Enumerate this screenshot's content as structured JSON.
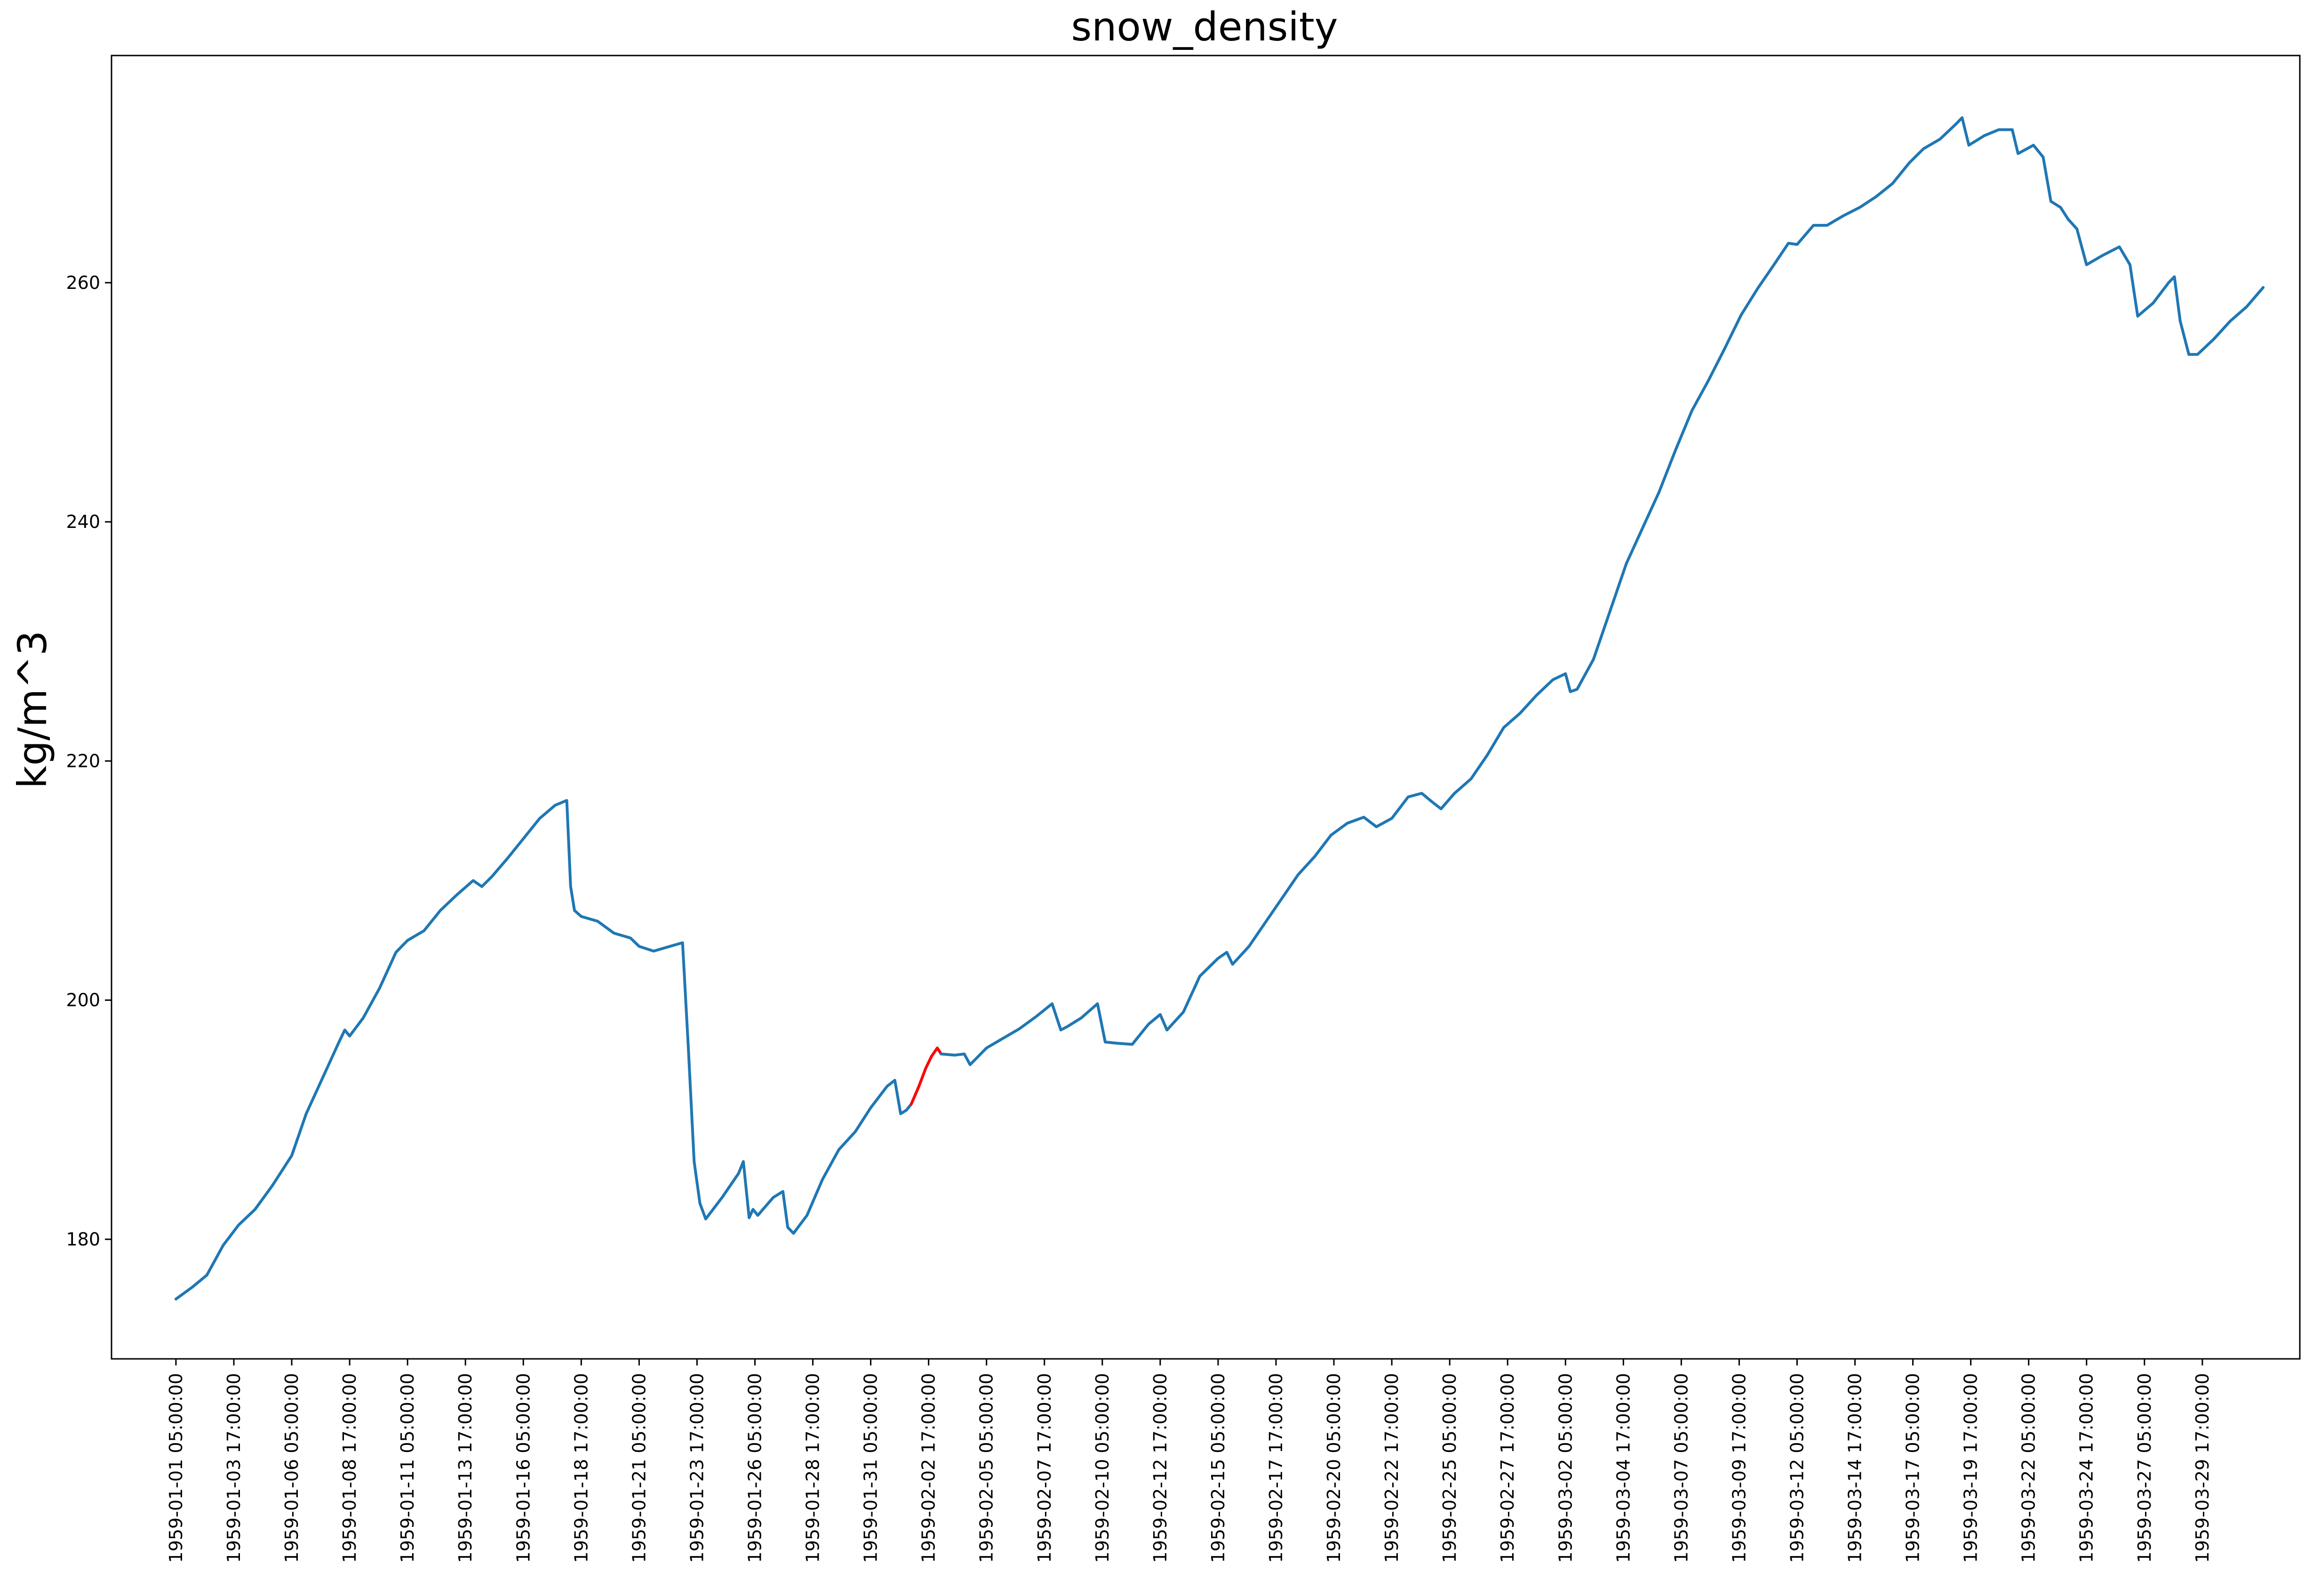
{
  "chart_data": {
    "type": "line",
    "title": "snow_density",
    "xlabel": "",
    "ylabel": "kg/m^3",
    "ylim": [
      170,
      279
    ],
    "xlim": [
      "1958-12-29 10:14:00",
      "1959-04-02 22:00:00"
    ],
    "grid": false,
    "y_ticks": [
      180,
      200,
      220,
      240,
      260
    ],
    "x_ticks": [
      "1959-01-01 05:00:00",
      "1959-01-03 17:00:00",
      "1959-01-06 05:00:00",
      "1959-01-08 17:00:00",
      "1959-01-11 05:00:00",
      "1959-01-13 17:00:00",
      "1959-01-16 05:00:00",
      "1959-01-18 17:00:00",
      "1959-01-21 05:00:00",
      "1959-01-23 17:00:00",
      "1959-01-26 05:00:00",
      "1959-01-28 17:00:00",
      "1959-01-31 05:00:00",
      "1959-02-02 17:00:00",
      "1959-02-05 05:00:00",
      "1959-02-07 17:00:00",
      "1959-02-10 05:00:00",
      "1959-02-12 17:00:00",
      "1959-02-15 05:00:00",
      "1959-02-17 17:00:00",
      "1959-02-20 05:00:00",
      "1959-02-22 17:00:00",
      "1959-02-25 05:00:00",
      "1959-02-27 17:00:00",
      "1959-03-02 05:00:00",
      "1959-03-04 17:00:00",
      "1959-03-07 05:00:00",
      "1959-03-09 17:00:00",
      "1959-03-12 05:00:00",
      "1959-03-14 17:00:00",
      "1959-03-17 05:00:00",
      "1959-03-19 17:00:00",
      "1959-03-22 05:00:00",
      "1959-03-24 17:00:00",
      "1959-03-27 05:00:00",
      "1959-03-29 17:00:00"
    ],
    "series": [
      {
        "color": "#1f77b4",
        "points": [
          [
            "1959-01-01 05:00",
            175.0
          ],
          [
            "1959-01-01 22:00",
            176.0
          ],
          [
            "1959-01-02 13:00",
            177.0
          ],
          [
            "1959-01-03 06:00",
            179.5
          ],
          [
            "1959-01-03 22:00",
            181.2
          ],
          [
            "1959-01-04 15:00",
            182.5
          ],
          [
            "1959-01-05 09:00",
            184.5
          ],
          [
            "1959-01-06 05:00",
            187.0
          ],
          [
            "1959-01-06 20:00",
            190.5
          ],
          [
            "1959-01-07 13:00",
            193.5
          ],
          [
            "1959-01-08 06:00",
            196.5
          ],
          [
            "1959-01-08 12:00",
            197.5
          ],
          [
            "1959-01-08 17:00",
            197.0
          ],
          [
            "1959-01-09 07:00",
            198.5
          ],
          [
            "1959-01-10 00:00",
            201.0
          ],
          [
            "1959-01-10 17:00",
            204.0
          ],
          [
            "1959-01-11 05:00",
            205.0
          ],
          [
            "1959-01-11 22:00",
            205.8
          ],
          [
            "1959-01-12 15:00",
            207.5
          ],
          [
            "1959-01-13 08:00",
            208.8
          ],
          [
            "1959-01-14 01:00",
            210.0
          ],
          [
            "1959-01-14 10:00",
            209.5
          ],
          [
            "1959-01-14 20:00",
            210.3
          ],
          [
            "1959-01-15 12:00",
            211.8
          ],
          [
            "1959-01-16 05:00",
            213.5
          ],
          [
            "1959-01-16 22:00",
            215.2
          ],
          [
            "1959-01-17 14:00",
            216.3
          ],
          [
            "1959-01-18 02:00",
            216.7
          ],
          [
            "1959-01-18 06:00",
            209.5
          ],
          [
            "1959-01-18 10:00",
            207.5
          ],
          [
            "1959-01-18 17:00",
            207.0
          ],
          [
            "1959-01-19 10:00",
            206.6
          ],
          [
            "1959-01-20 03:00",
            205.6
          ],
          [
            "1959-01-20 20:00",
            205.2
          ],
          [
            "1959-01-21 05:00",
            204.5
          ],
          [
            "1959-01-21 20:00",
            204.1
          ],
          [
            "1959-01-22 13:00",
            204.5
          ],
          [
            "1959-01-23 02:00",
            204.8
          ],
          [
            "1959-01-23 08:00",
            196.0
          ],
          [
            "1959-01-23 14:00",
            186.5
          ],
          [
            "1959-01-23 20:00",
            183.0
          ],
          [
            "1959-01-24 02:00",
            181.7
          ],
          [
            "1959-01-24 19:00",
            183.5
          ],
          [
            "1959-01-25 12:00",
            185.5
          ],
          [
            "1959-01-25 17:00",
            186.5
          ],
          [
            "1959-01-25 23:00",
            181.8
          ],
          [
            "1959-01-26 03:00",
            182.5
          ],
          [
            "1959-01-26 08:00",
            182.0
          ],
          [
            "1959-01-27 00:00",
            183.5
          ],
          [
            "1959-01-27 10:00",
            184.0
          ],
          [
            "1959-01-27 15:00",
            181.0
          ],
          [
            "1959-01-27 21:00",
            180.5
          ],
          [
            "1959-01-28 11:00",
            182.0
          ],
          [
            "1959-01-29 03:00",
            185.0
          ],
          [
            "1959-01-29 20:00",
            187.5
          ],
          [
            "1959-01-30 13:00",
            189.0
          ],
          [
            "1959-01-31 05:00",
            191.0
          ],
          [
            "1959-01-31 22:00",
            192.8
          ],
          [
            "1959-02-01 06:00",
            193.3
          ],
          [
            "1959-02-01 12:00",
            190.5
          ],
          [
            "1959-02-01 18:00",
            190.8
          ],
          [
            "1959-02-01 23:00",
            191.3
          ]
        ]
      },
      {
        "color": "#ff0000",
        "points": [
          [
            "1959-02-01 23:00",
            191.3
          ],
          [
            "1959-02-02 07:00",
            192.8
          ],
          [
            "1959-02-02 14:00",
            194.3
          ],
          [
            "1959-02-02 20:00",
            195.3
          ],
          [
            "1959-02-03 02:00",
            196.0
          ],
          [
            "1959-02-03 06:00",
            195.5
          ]
        ]
      },
      {
        "color": "#1f77b4",
        "points": [
          [
            "1959-02-03 06:00",
            195.5
          ],
          [
            "1959-02-03 20:00",
            195.4
          ],
          [
            "1959-02-04 06:00",
            195.5
          ],
          [
            "1959-02-04 12:00",
            194.6
          ],
          [
            "1959-02-05 05:00",
            196.0
          ],
          [
            "1959-02-05 22:00",
            196.8
          ],
          [
            "1959-02-06 15:00",
            197.6
          ],
          [
            "1959-02-07 08:00",
            198.6
          ],
          [
            "1959-02-08 01:00",
            199.7
          ],
          [
            "1959-02-08 10:00",
            197.5
          ],
          [
            "1959-02-08 17:00",
            197.8
          ],
          [
            "1959-02-09 07:00",
            198.5
          ],
          [
            "1959-02-10 00:00",
            199.7
          ],
          [
            "1959-02-10 08:00",
            196.5
          ],
          [
            "1959-02-10 20:00",
            196.4
          ],
          [
            "1959-02-11 12:00",
            196.3
          ],
          [
            "1959-02-12 05:00",
            198.0
          ],
          [
            "1959-02-12 17:00",
            198.8
          ],
          [
            "1959-02-13 00:00",
            197.5
          ],
          [
            "1959-02-13 17:00",
            199.0
          ],
          [
            "1959-02-14 10:00",
            202.0
          ],
          [
            "1959-02-15 05:00",
            203.5
          ],
          [
            "1959-02-15 14:00",
            204.0
          ],
          [
            "1959-02-15 20:00",
            203.0
          ],
          [
            "1959-02-16 13:00",
            204.5
          ],
          [
            "1959-02-17 06:00",
            206.5
          ],
          [
            "1959-02-17 23:00",
            208.5
          ],
          [
            "1959-02-18 16:00",
            210.5
          ],
          [
            "1959-02-19 09:00",
            212.0
          ],
          [
            "1959-02-20 02:00",
            213.8
          ],
          [
            "1959-02-20 19:00",
            214.8
          ],
          [
            "1959-02-21 12:00",
            215.3
          ],
          [
            "1959-02-22 01:00",
            214.5
          ],
          [
            "1959-02-22 17:00",
            215.2
          ],
          [
            "1959-02-23 10:00",
            217.0
          ],
          [
            "1959-02-24 00:00",
            217.3
          ],
          [
            "1959-02-24 12:00",
            216.5
          ],
          [
            "1959-02-24 20:00",
            216.0
          ],
          [
            "1959-02-25 10:00",
            217.3
          ],
          [
            "1959-02-26 03:00",
            218.5
          ],
          [
            "1959-02-26 20:00",
            220.5
          ],
          [
            "1959-02-27 13:00",
            222.8
          ],
          [
            "1959-02-28 06:00",
            224.0
          ],
          [
            "1959-02-28 23:00",
            225.5
          ],
          [
            "1959-03-01 16:00",
            226.8
          ],
          [
            "1959-03-02 05:00",
            227.3
          ],
          [
            "1959-03-02 10:00",
            225.8
          ],
          [
            "1959-03-02 17:00",
            226.0
          ],
          [
            "1959-03-03 10:00",
            228.5
          ],
          [
            "1959-03-04 03:00",
            232.5
          ],
          [
            "1959-03-04 20:00",
            236.5
          ],
          [
            "1959-03-05 13:00",
            239.5
          ],
          [
            "1959-03-06 06:00",
            242.5
          ],
          [
            "1959-03-06 23:00",
            246.0
          ],
          [
            "1959-03-07 16:00",
            249.3
          ],
          [
            "1959-03-08 09:00",
            251.8
          ],
          [
            "1959-03-09 02:00",
            254.5
          ],
          [
            "1959-03-09 19:00",
            257.3
          ],
          [
            "1959-03-10 12:00",
            259.5
          ],
          [
            "1959-03-11 05:00",
            261.5
          ],
          [
            "1959-03-11 20:00",
            263.3
          ],
          [
            "1959-03-12 05:00",
            263.2
          ],
          [
            "1959-03-12 22:00",
            264.8
          ],
          [
            "1959-03-13 12:00",
            264.8
          ],
          [
            "1959-03-14 05:00",
            265.6
          ],
          [
            "1959-03-14 22:00",
            266.3
          ],
          [
            "1959-03-15 15:00",
            267.2
          ],
          [
            "1959-03-16 08:00",
            268.3
          ],
          [
            "1959-03-17 01:00",
            270.0
          ],
          [
            "1959-03-17 16:00",
            271.2
          ],
          [
            "1959-03-18 09:00",
            272.0
          ],
          [
            "1959-03-19 02:00",
            273.3
          ],
          [
            "1959-03-19 08:00",
            273.8
          ],
          [
            "1959-03-19 15:00",
            271.5
          ],
          [
            "1959-03-20 07:00",
            272.3
          ],
          [
            "1959-03-20 22:00",
            272.8
          ],
          [
            "1959-03-21 12:00",
            272.8
          ],
          [
            "1959-03-21 18:00",
            270.8
          ],
          [
            "1959-03-22 10:00",
            271.5
          ],
          [
            "1959-03-22 20:00",
            270.5
          ],
          [
            "1959-03-23 04:00",
            266.8
          ],
          [
            "1959-03-23 14:00",
            266.3
          ],
          [
            "1959-03-23 22:00",
            265.3
          ],
          [
            "1959-03-24 07:00",
            264.5
          ],
          [
            "1959-03-24 17:00",
            261.5
          ],
          [
            "1959-03-25 10:00",
            262.3
          ],
          [
            "1959-03-26 03:00",
            263.0
          ],
          [
            "1959-03-26 14:00",
            261.5
          ],
          [
            "1959-03-26 22:00",
            257.2
          ],
          [
            "1959-03-27 14:00",
            258.3
          ],
          [
            "1959-03-28 06:00",
            260.0
          ],
          [
            "1959-03-28 12:00",
            260.5
          ],
          [
            "1959-03-28 18:00",
            256.8
          ],
          [
            "1959-03-29 03:00",
            254.0
          ],
          [
            "1959-03-29 12:00",
            254.0
          ],
          [
            "1959-03-30 05:00",
            255.3
          ],
          [
            "1959-03-30 22:00",
            256.8
          ],
          [
            "1959-03-31 15:00",
            258.0
          ],
          [
            "1959-04-01 08:00",
            259.6
          ]
        ]
      }
    ]
  }
}
